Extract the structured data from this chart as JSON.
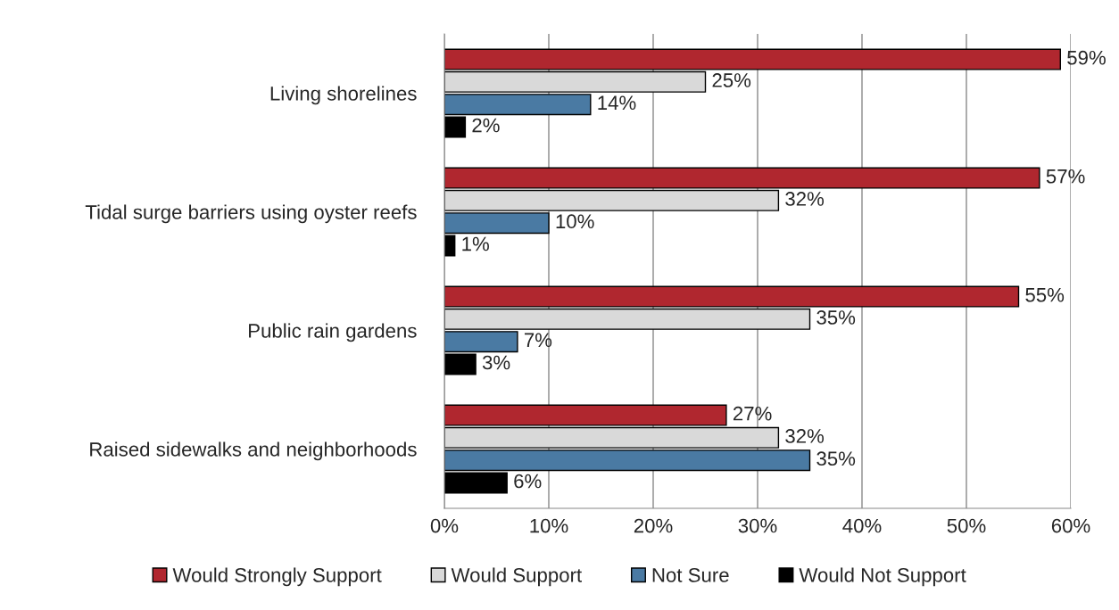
{
  "chart_data": {
    "type": "bar",
    "orientation": "horizontal",
    "categories": [
      "Living shorelines",
      "Tidal surge barriers using oyster reefs",
      "Public rain gardens",
      "Raised sidewalks and neighborhoods"
    ],
    "series": [
      {
        "name": "Would Strongly Support",
        "color": "#b0272f",
        "values": [
          59,
          57,
          55,
          27
        ],
        "value_labels": [
          "59%",
          "57%",
          "55%",
          "27%"
        ]
      },
      {
        "name": "Would Support",
        "color": "#d9d9d9",
        "values": [
          25,
          32,
          35,
          32
        ],
        "value_labels": [
          "25%",
          "32%",
          "35%",
          "32%"
        ]
      },
      {
        "name": "Not Sure",
        "color": "#4a7aa3",
        "values": [
          14,
          10,
          7,
          35
        ],
        "value_labels": [
          "14%",
          "10%",
          "7%",
          "35%"
        ]
      },
      {
        "name": "Would Not Support",
        "color": "#000000",
        "values": [
          2,
          1,
          3,
          6
        ],
        "value_labels": [
          "2%",
          "1%",
          "3%",
          "6%"
        ]
      }
    ],
    "xlim": [
      0,
      60
    ],
    "xticks": [
      {
        "value": 0,
        "label": "0%"
      },
      {
        "value": 10,
        "label": "10%"
      },
      {
        "value": 20,
        "label": "20%"
      },
      {
        "value": 30,
        "label": "30%"
      },
      {
        "value": 40,
        "label": "40%"
      },
      {
        "value": 50,
        "label": "50%"
      },
      {
        "value": 60,
        "label": "60%"
      }
    ],
    "grid": "x",
    "legend": "bottom"
  }
}
